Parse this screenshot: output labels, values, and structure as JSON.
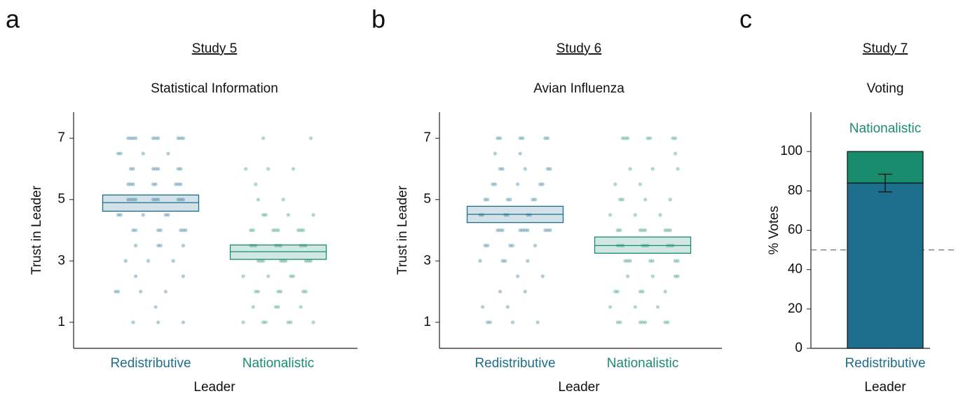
{
  "chart_data": [
    {
      "type": "strip",
      "panel": "a",
      "subtitle": "Study 5",
      "title": "Statistical Information",
      "xlabel": "Leader",
      "ylabel": "Trust in Leader",
      "categories": [
        "Redistributive",
        "Nationalistic"
      ],
      "colors": [
        "#1c6e8c",
        "#1a8c6e"
      ],
      "ylim": [
        0.15,
        7.85
      ],
      "yticks": [
        1,
        3,
        5,
        7
      ],
      "means": [
        4.9,
        3.3
      ],
      "ci": [
        [
          4.62,
          5.15
        ],
        [
          3.05,
          3.52
        ]
      ],
      "points": [
        [
          7,
          7,
          7,
          7,
          7,
          7,
          7,
          7,
          7,
          7,
          6.5,
          6.5,
          6.5,
          6.5,
          6,
          6,
          6,
          6,
          6,
          6,
          6,
          5.5,
          5.5,
          5.5,
          5.5,
          5.5,
          5.5,
          5.5,
          5.5,
          5,
          5,
          5,
          5,
          5,
          5,
          5,
          5,
          5,
          5,
          4.5,
          4.5,
          4.5,
          4.5,
          4.5,
          4,
          4,
          4,
          4,
          4,
          4,
          4,
          3.5,
          3.5,
          3.5,
          3.5,
          3,
          3,
          3,
          2.5,
          2.5,
          2,
          2,
          2,
          2,
          1.5,
          1,
          1,
          1
        ],
        [
          7,
          7,
          6,
          6,
          6,
          5.5,
          5,
          5,
          4.5,
          4.5,
          4.5,
          4.5,
          4,
          4,
          4,
          4,
          4,
          4,
          4,
          4,
          3.5,
          3.5,
          3.5,
          3.5,
          3.5,
          3.5,
          3.5,
          3.5,
          3.5,
          3,
          3,
          3,
          3,
          3,
          3,
          3,
          3,
          3,
          2.5,
          2.5,
          2.5,
          2.5,
          2,
          2,
          2,
          2,
          2,
          2,
          1.5,
          1.5,
          1.5,
          1.5,
          1,
          1,
          1,
          1,
          1,
          1
        ]
      ]
    },
    {
      "type": "strip",
      "panel": "b",
      "subtitle": "Study 6",
      "title": "Avian Influenza",
      "xlabel": "Leader",
      "ylabel": "Trust in Leader",
      "categories": [
        "Redistributive",
        "Nationalistic"
      ],
      "colors": [
        "#1c6e8c",
        "#1a8c6e"
      ],
      "ylim": [
        0.15,
        7.85
      ],
      "yticks": [
        1,
        3,
        5,
        7
      ],
      "means": [
        4.52,
        3.5
      ],
      "ci": [
        [
          4.25,
          4.78
        ],
        [
          3.25,
          3.78
        ]
      ],
      "points": [
        [
          7,
          7,
          7,
          7,
          7,
          7,
          6.5,
          6.5,
          6,
          6,
          6,
          6,
          6,
          5.5,
          5.5,
          5.5,
          5.5,
          5.5,
          5,
          5,
          5,
          5,
          5,
          5,
          4.5,
          4.5,
          4.5,
          4.5,
          4.5,
          4.5,
          4,
          4,
          4,
          4,
          4,
          4,
          4,
          4,
          4,
          4,
          3.5,
          3.5,
          3.5,
          3.5,
          3.5,
          3,
          3,
          3,
          3,
          2.5,
          2.5,
          2,
          2,
          1.5,
          1.5,
          1,
          1,
          1,
          1
        ],
        [
          7,
          7,
          7,
          7,
          7,
          7,
          7,
          6.5,
          6,
          6,
          6,
          5.5,
          5.5,
          5,
          5,
          5,
          5,
          4.5,
          4.5,
          4.5,
          4,
          4,
          4,
          4,
          4,
          4,
          4,
          4,
          3.5,
          3.5,
          3.5,
          3.5,
          3.5,
          3.5,
          3.5,
          3.5,
          3.5,
          3,
          3,
          3,
          3,
          3,
          3,
          3,
          2.5,
          2.5,
          2.5,
          2.5,
          2,
          2,
          2,
          2,
          2,
          1.5,
          1.5,
          1.5,
          1,
          1,
          1,
          1,
          1,
          1,
          1
        ]
      ]
    },
    {
      "type": "stacked",
      "panel": "c",
      "subtitle": "Study 7",
      "title": "Voting",
      "xlabel": "Leader",
      "ylabel": "% Votes",
      "categories": [
        "Redistributive"
      ],
      "ylim": [
        0,
        120
      ],
      "yticks": [
        0,
        20,
        40,
        60,
        80,
        100
      ],
      "hline": 50,
      "series": [
        {
          "name": "Redistributive",
          "color": "#1c6e8c",
          "value": 84
        },
        {
          "name": "Nationalistic",
          "color": "#1a8c6e",
          "value": 16
        }
      ],
      "ci": [
        79.5,
        88.5
      ]
    }
  ]
}
